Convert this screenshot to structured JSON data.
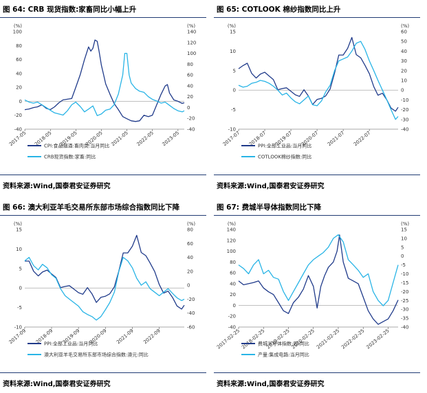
{
  "panels": [
    {
      "id": "p1",
      "title": "图 64: CRB 现货指数:家畜同比小幅上升",
      "source": "资料来源:Wind,国泰君安证券研究"
    },
    {
      "id": "p2",
      "title": "图 65: COTLOOK 棉纱指数同比上升",
      "source": "资料来源:Wind,国泰君安证券研究"
    },
    {
      "id": "p3",
      "title": "图 66: 澳大利亚羊毛交易所东部市场综合指数同比下降",
      "source": "资料来源:Wind,国泰君安证券研究"
    },
    {
      "id": "p4",
      "title": "图 67: 费城半导体指数同比下降",
      "source": "资料来源:Wind,国泰君安证券研究"
    }
  ],
  "chart_data": [
    {
      "type": "line",
      "left_axis": {
        "unit": "(%)",
        "ticks": [
          100,
          80,
          60,
          40,
          20,
          0,
          -20,
          -40
        ],
        "ylim": [
          -40,
          100
        ]
      },
      "right_axis": {
        "unit": "(%)",
        "ticks": [
          140,
          120,
          100,
          80,
          60,
          40,
          20,
          0,
          -20,
          -40
        ],
        "ylim": [
          -40,
          140
        ]
      },
      "x_ticks": [
        "2017-05",
        "2018-05",
        "2019-05",
        "2020-05",
        "2021-05",
        "2022-05",
        "2023-05"
      ],
      "x_range": [
        2017.33,
        2023.58
      ],
      "series": [
        {
          "name": "CPI:食品烟酒:畜肉类:当月同比",
          "axis": "left",
          "color": "#1f3a8a",
          "x": [
            2017.33,
            2017.5,
            2017.67,
            2017.83,
            2018.0,
            2018.17,
            2018.33,
            2018.5,
            2018.67,
            2018.83,
            2019.0,
            2019.17,
            2019.33,
            2019.5,
            2019.67,
            2019.83,
            2019.92,
            2020.0,
            2020.08,
            2020.17,
            2020.25,
            2020.33,
            2020.42,
            2020.5,
            2020.67,
            2020.83,
            2021.0,
            2021.17,
            2021.33,
            2021.5,
            2021.67,
            2021.83,
            2022.0,
            2022.17,
            2022.33,
            2022.5,
            2022.67,
            2022.83,
            2022.92,
            2023.0,
            2023.17,
            2023.33,
            2023.5,
            2023.58
          ],
          "y": [
            -12,
            -11,
            -9,
            -8,
            -5,
            -10,
            -12,
            -8,
            -2,
            2,
            3,
            4,
            20,
            38,
            60,
            78,
            72,
            76,
            88,
            86,
            70,
            52,
            38,
            25,
            10,
            -3,
            -12,
            -22,
            -25,
            -28,
            -29,
            -28,
            -20,
            -22,
            -20,
            -5,
            10,
            22,
            24,
            12,
            2,
            0,
            -3,
            -2
          ]
        },
        {
          "name": "CRB现货指数:家畜:同比",
          "axis": "right",
          "color": "#28b4e6",
          "x": [
            2017.33,
            2017.5,
            2017.67,
            2017.83,
            2018.0,
            2018.17,
            2018.33,
            2018.5,
            2018.67,
            2018.83,
            2019.0,
            2019.17,
            2019.33,
            2019.5,
            2019.67,
            2019.83,
            2020.0,
            2020.17,
            2020.33,
            2020.5,
            2020.67,
            2020.83,
            2021.0,
            2021.17,
            2021.25,
            2021.33,
            2021.42,
            2021.5,
            2021.67,
            2021.83,
            2022.0,
            2022.17,
            2022.33,
            2022.5,
            2022.67,
            2022.83,
            2023.0,
            2023.17,
            2023.33,
            2023.5,
            2023.58
          ],
          "y": [
            14,
            10,
            8,
            10,
            5,
            0,
            -5,
            -10,
            -12,
            -14,
            -6,
            5,
            10,
            2,
            -8,
            -3,
            3,
            -15,
            -12,
            -5,
            -3,
            5,
            25,
            60,
            100,
            100,
            60,
            45,
            35,
            30,
            28,
            20,
            15,
            12,
            8,
            10,
            4,
            -2,
            -6,
            -8,
            -6
          ]
        }
      ]
    },
    {
      "type": "line",
      "left_axis": {
        "unit": "(%)",
        "ticks": [
          15,
          10,
          5,
          0,
          -5,
          -10
        ],
        "ylim": [
          -10,
          15
        ]
      },
      "right_axis": {
        "unit": "(%)",
        "ticks": [
          60,
          50,
          40,
          30,
          20,
          10,
          0,
          -10,
          -20,
          -30,
          -40
        ],
        "ylim": [
          -40,
          60
        ]
      },
      "x_ticks": [
        "2017-07",
        "2018-07",
        "2019-07",
        "2020-07",
        "2021-07",
        "2022-07"
      ],
      "x_range": [
        2017.5,
        2023.6
      ],
      "series": [
        {
          "name": "PPI:全部工业品:当月同比",
          "axis": "left",
          "color": "#1f3a8a",
          "x": [
            2017.5,
            2017.67,
            2017.83,
            2018.0,
            2018.17,
            2018.33,
            2018.5,
            2018.67,
            2018.83,
            2019.0,
            2019.17,
            2019.33,
            2019.5,
            2019.67,
            2019.83,
            2020.0,
            2020.17,
            2020.33,
            2020.5,
            2020.67,
            2020.83,
            2021.0,
            2021.17,
            2021.33,
            2021.5,
            2021.67,
            2021.83,
            2022.0,
            2022.17,
            2022.33,
            2022.5,
            2022.67,
            2022.83,
            2023.0,
            2023.17,
            2023.33,
            2023.5,
            2023.6
          ],
          "y": [
            5.5,
            6.3,
            6.9,
            4.3,
            3.1,
            4.1,
            4.6,
            3.6,
            2.7,
            0.1,
            0.4,
            0.6,
            -0.3,
            -1.2,
            -1.6,
            0.1,
            -1.5,
            -3.7,
            -2.4,
            -2.1,
            -1.5,
            0.3,
            4.4,
            9.0,
            9.0,
            10.7,
            13.5,
            9.1,
            8.3,
            6.4,
            4.2,
            0.9,
            -1.3,
            -0.8,
            -2.5,
            -4.6,
            -5.4,
            -4.4
          ]
        },
        {
          "name": "COTLOOK棉纱指数:同比",
          "axis": "right",
          "color": "#28b4e6",
          "x": [
            2017.5,
            2017.67,
            2017.83,
            2018.0,
            2018.17,
            2018.33,
            2018.5,
            2018.67,
            2018.83,
            2019.0,
            2019.17,
            2019.33,
            2019.5,
            2019.67,
            2019.83,
            2020.0,
            2020.17,
            2020.33,
            2020.5,
            2020.67,
            2020.83,
            2021.0,
            2021.17,
            2021.33,
            2021.5,
            2021.67,
            2021.83,
            2022.0,
            2022.17,
            2022.33,
            2022.5,
            2022.67,
            2022.83,
            2023.0,
            2023.17,
            2023.33,
            2023.5,
            2023.6
          ],
          "y": [
            5,
            3,
            4,
            7,
            8,
            10,
            9,
            7,
            4,
            0,
            -5,
            -3,
            -8,
            -12,
            -14,
            -10,
            -6,
            -15,
            -16,
            -11,
            -2,
            5,
            20,
            30,
            32,
            34,
            40,
            48,
            50,
            42,
            30,
            20,
            10,
            0,
            -10,
            -20,
            -30,
            -27
          ]
        }
      ]
    },
    {
      "type": "line",
      "left_axis": {
        "unit": "(%)",
        "ticks": [
          15,
          10,
          5,
          0,
          -5,
          -10
        ],
        "ylim": [
          -10,
          15
        ]
      },
      "right_axis": {
        "unit": "(%)",
        "ticks": [
          80,
          60,
          40,
          20,
          0,
          -20,
          -40,
          -60
        ],
        "ylim": [
          -60,
          80
        ]
      },
      "x_ticks": [
        "2017-09",
        "2018-09",
        "2019-09",
        "2020-09",
        "2021-09",
        "2022-09"
      ],
      "x_range": [
        2017.67,
        2023.6
      ],
      "series": [
        {
          "name": "PPI:全部工业品:当月同比",
          "axis": "left",
          "color": "#1f3a8a",
          "x": [
            2017.67,
            2017.83,
            2018.0,
            2018.17,
            2018.33,
            2018.5,
            2018.67,
            2018.83,
            2019.0,
            2019.17,
            2019.33,
            2019.5,
            2019.67,
            2019.83,
            2020.0,
            2020.17,
            2020.33,
            2020.5,
            2020.67,
            2020.83,
            2021.0,
            2021.17,
            2021.33,
            2021.5,
            2021.67,
            2021.83,
            2022.0,
            2022.17,
            2022.33,
            2022.5,
            2022.67,
            2022.83,
            2023.0,
            2023.17,
            2023.33,
            2023.5,
            2023.6
          ],
          "y": [
            6.9,
            6.9,
            4.3,
            3.1,
            4.1,
            4.6,
            3.6,
            2.7,
            0.1,
            0.4,
            0.6,
            -0.3,
            -1.2,
            -1.6,
            0.1,
            -1.5,
            -3.7,
            -2.4,
            -2.1,
            -1.5,
            0.3,
            4.4,
            9.0,
            9.0,
            10.7,
            13.5,
            9.1,
            8.3,
            6.4,
            4.2,
            0.9,
            -1.3,
            -0.8,
            -2.5,
            -4.6,
            -5.4,
            -4.4
          ]
        },
        {
          "name": "澳大利亚羊毛交易所东部市场综合指数:澳元:同比",
          "axis": "right",
          "color": "#28b4e6",
          "x": [
            2017.67,
            2017.83,
            2018.0,
            2018.17,
            2018.33,
            2018.5,
            2018.67,
            2018.83,
            2019.0,
            2019.17,
            2019.33,
            2019.5,
            2019.67,
            2019.83,
            2020.0,
            2020.17,
            2020.33,
            2020.5,
            2020.67,
            2020.83,
            2021.0,
            2021.17,
            2021.33,
            2021.5,
            2021.67,
            2021.83,
            2022.0,
            2022.17,
            2022.33,
            2022.5,
            2022.67,
            2022.83,
            2023.0,
            2023.17,
            2023.33,
            2023.5,
            2023.6
          ],
          "y": [
            35,
            40,
            28,
            22,
            30,
            25,
            15,
            10,
            -5,
            -15,
            -20,
            -25,
            -30,
            -38,
            -42,
            -45,
            -50,
            -45,
            -35,
            -25,
            -10,
            20,
            40,
            35,
            25,
            10,
            0,
            5,
            -5,
            -10,
            -15,
            -10,
            -5,
            -12,
            -18,
            -22,
            -20
          ]
        }
      ]
    },
    {
      "type": "line",
      "left_axis": {
        "unit": "(%)",
        "ticks": [
          140,
          120,
          100,
          80,
          60,
          40,
          20,
          0,
          -20,
          -40
        ],
        "ylim": [
          -40,
          140
        ]
      },
      "right_axis": {
        "unit": "(%)",
        "ticks": [
          15,
          10,
          5,
          0,
          -5,
          -10,
          -15,
          -20,
          -25,
          -30,
          -35,
          -40
        ],
        "ylim": [
          -40,
          15
        ]
      },
      "x_ticks": [
        "2017-02-25",
        "2018-02-25",
        "2019-02-25",
        "2020-02-25",
        "2021-02-25",
        "2022-02-25",
        "2023-02-25"
      ],
      "x_range": [
        2017.15,
        2023.55
      ],
      "series": [
        {
          "name": "费城半导体指数:周:同比",
          "axis": "left",
          "color": "#1f3a8a",
          "x": [
            2017.15,
            2017.35,
            2017.55,
            2017.75,
            2017.95,
            2018.15,
            2018.35,
            2018.55,
            2018.75,
            2018.95,
            2019.15,
            2019.35,
            2019.55,
            2019.75,
            2019.95,
            2020.15,
            2020.3,
            2020.45,
            2020.6,
            2020.75,
            2020.95,
            2021.1,
            2021.2,
            2021.35,
            2021.55,
            2021.75,
            2021.95,
            2022.15,
            2022.35,
            2022.55,
            2022.75,
            2022.95,
            2023.15,
            2023.35,
            2023.55
          ],
          "y": [
            45,
            38,
            40,
            42,
            45,
            32,
            25,
            20,
            5,
            -10,
            -15,
            5,
            15,
            30,
            55,
            35,
            -5,
            35,
            55,
            70,
            80,
            100,
            130,
            80,
            50,
            45,
            40,
            15,
            -10,
            -25,
            -35,
            -30,
            -25,
            -10,
            10
          ]
        },
        {
          "name": "产量:集成电路:当月同比",
          "axis": "right",
          "color": "#28b4e6",
          "x": [
            2017.15,
            2017.35,
            2017.55,
            2017.75,
            2017.95,
            2018.15,
            2018.35,
            2018.55,
            2018.75,
            2018.95,
            2019.15,
            2019.35,
            2019.55,
            2019.75,
            2019.95,
            2020.15,
            2020.35,
            2020.55,
            2020.75,
            2020.95,
            2021.15,
            2021.35,
            2021.55,
            2021.75,
            2021.95,
            2022.15,
            2022.35,
            2022.55,
            2022.75,
            2022.95,
            2023.15,
            2023.35,
            2023.55
          ],
          "y": [
            -5,
            -7,
            -10,
            -5,
            -2,
            -10,
            -8,
            -12,
            -13,
            -20,
            -25,
            -20,
            -15,
            -10,
            -5,
            -2,
            0,
            2,
            5,
            10,
            12,
            8,
            -2,
            -5,
            -8,
            -12,
            -10,
            -20,
            -25,
            -28,
            -25,
            -15,
            -5
          ]
        }
      ]
    }
  ],
  "legends": [
    [
      "CPI:食品烟酒:畜肉类:当月同比",
      "CRB现货指数:家畜:同比"
    ],
    [
      "PPI:全部工业品:当月同比",
      "COTLOOK棉纱指数:同比"
    ],
    [
      "PPI:全部工业品:当月同比",
      "澳大利亚羊毛交易所东部市场综合指数:澳元:同比"
    ],
    [
      "费城半导体指数:周:同比",
      "产量:集成电路:当月同比"
    ]
  ]
}
